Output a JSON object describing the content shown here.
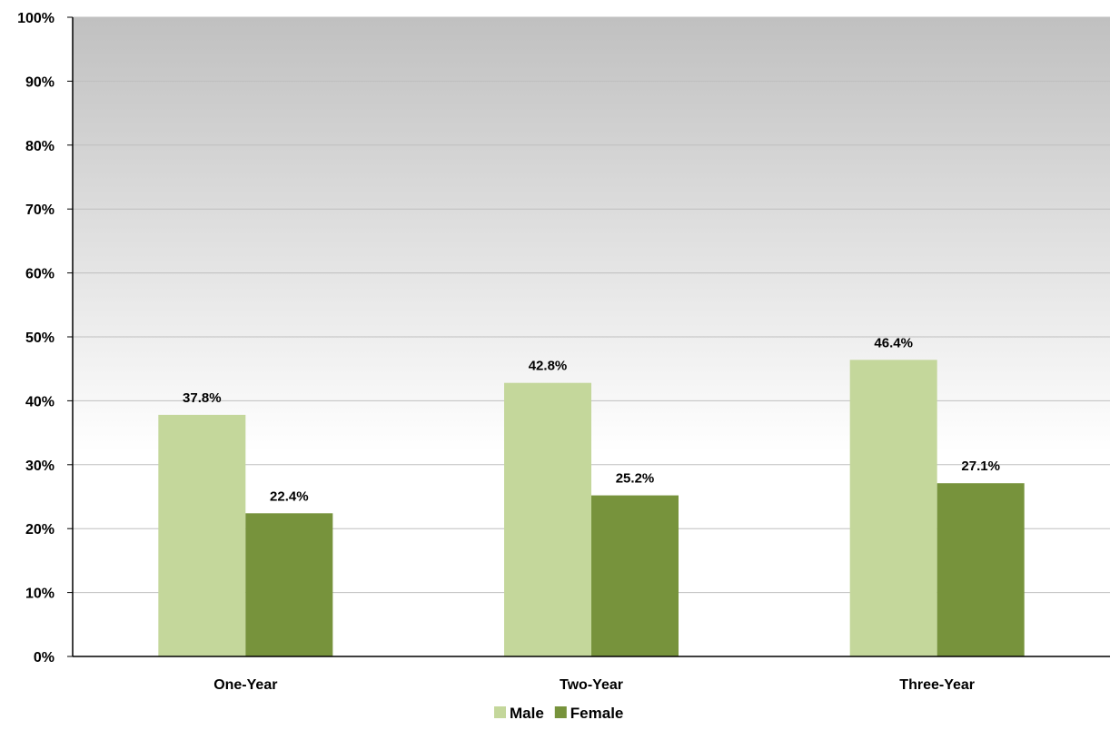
{
  "chart_data": {
    "type": "bar",
    "title": "",
    "xlabel": "",
    "ylabel": "",
    "categories": [
      "One-Year",
      "Two-Year",
      "Three-Year"
    ],
    "series": [
      {
        "name": "Male",
        "values": [
          37.8,
          42.8,
          46.4
        ],
        "labels": [
          "37.8%",
          "42.8%",
          "46.4%"
        ],
        "color": "#c4d79b"
      },
      {
        "name": "Female",
        "values": [
          22.4,
          25.2,
          27.1
        ],
        "labels": [
          "22.4%",
          "25.2%",
          "27.1%"
        ],
        "color": "#77933c"
      }
    ],
    "ylim": [
      0,
      100
    ],
    "yticks": [
      0,
      10,
      20,
      30,
      40,
      50,
      60,
      70,
      80,
      90,
      100
    ],
    "ytick_labels": [
      "0%",
      "10%",
      "20%",
      "30%",
      "40%",
      "50%",
      "60%",
      "70%",
      "80%",
      "90%",
      "100%"
    ],
    "grid": true,
    "legend_position": "bottom-center",
    "plot_background": "gradient gray to white",
    "colors": {
      "gradient_top": "#c0c0c0",
      "gradient_bottom": "#ffffff",
      "gridline": "#bfbfbf",
      "axis": "#000000"
    }
  }
}
